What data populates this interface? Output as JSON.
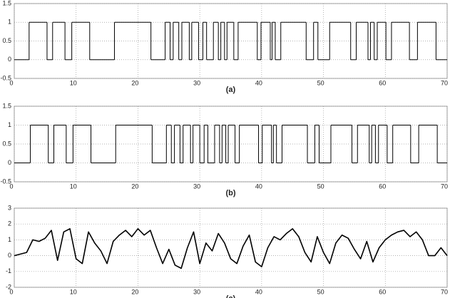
{
  "chart_data": [
    {
      "type": "step",
      "xlabel": "(a)",
      "xlim": [
        0,
        70
      ],
      "ylim": [
        -0.5,
        1.5
      ],
      "xticks": [
        0,
        10,
        20,
        30,
        40,
        50,
        60,
        70
      ],
      "yticks": [
        -0.5,
        0,
        0.5,
        1,
        1.5
      ],
      "grid": true,
      "series": [
        {
          "color": "#000000",
          "x": [
            0,
            2.4,
            5.3,
            6.2,
            8.2,
            9.3,
            12.2,
            16.2,
            22.1,
            24.4,
            25.2,
            25.7,
            26.6,
            27.1,
            28.3,
            28.7,
            29.8,
            30.5,
            31.1,
            32.2,
            33.0,
            33.4,
            34.0,
            34.4,
            35.5,
            36.2,
            39.3,
            39.9,
            41.4,
            41.7,
            42.2,
            43.1,
            47.2,
            48.4,
            49.1,
            51.0,
            54.4,
            55.3,
            57.2,
            57.6,
            58.2,
            58.7,
            60.1,
            61.0,
            63.9,
            65.2,
            68.2
          ],
          "values": [
            0,
            1,
            0,
            1,
            0,
            1,
            0,
            1,
            0,
            1,
            0,
            1,
            0,
            1,
            0,
            1,
            0,
            1,
            0,
            1,
            0,
            1,
            0,
            1,
            0,
            1,
            0,
            1,
            0,
            1,
            0,
            1,
            0,
            1,
            0,
            1,
            0,
            1,
            0,
            1,
            0,
            1,
            0,
            1,
            0,
            1,
            0
          ]
        }
      ]
    },
    {
      "type": "step",
      "xlabel": "(b)",
      "xlim": [
        0,
        70
      ],
      "ylim": [
        -0.5,
        1.5
      ],
      "xticks": [
        0,
        10,
        20,
        30,
        40,
        50,
        60,
        70
      ],
      "yticks": [
        -0.5,
        0,
        0.5,
        1,
        1.5
      ],
      "grid": true,
      "series": [
        {
          "color": "#000000",
          "x": [
            0,
            2.6,
            5.5,
            6.4,
            8.4,
            9.5,
            12.4,
            16.4,
            22.3,
            24.6,
            25.4,
            25.9,
            26.8,
            27.3,
            28.5,
            28.9,
            30.0,
            30.7,
            31.3,
            32.4,
            33.2,
            33.6,
            34.2,
            34.6,
            35.7,
            36.4,
            39.5,
            40.1,
            41.6,
            41.9,
            42.4,
            43.3,
            47.4,
            48.6,
            49.3,
            51.2,
            54.6,
            55.5,
            57.4,
            57.8,
            58.4,
            58.9,
            60.3,
            61.2,
            64.1,
            65.4,
            68.4
          ],
          "values": [
            0,
            1,
            0,
            1,
            0,
            1,
            0,
            1,
            0,
            1,
            0,
            1,
            0,
            1,
            0,
            1,
            0,
            1,
            0,
            1,
            0,
            1,
            0,
            1,
            0,
            1,
            0,
            1,
            0,
            1,
            0,
            1,
            0,
            1,
            0,
            1,
            0,
            1,
            0,
            1,
            0,
            1,
            0,
            1,
            0,
            1,
            0
          ]
        }
      ]
    },
    {
      "type": "line",
      "xlabel": "(c)",
      "xlim": [
        0,
        70
      ],
      "ylim": [
        -2,
        3
      ],
      "xticks": [
        0,
        10,
        20,
        30,
        40,
        50,
        60,
        70
      ],
      "yticks": [
        -2,
        -1,
        0,
        1,
        2,
        3
      ],
      "grid": true,
      "series": [
        {
          "color": "#000000",
          "x": [
            0,
            1,
            2,
            3,
            4,
            5,
            6,
            7,
            8,
            9,
            10,
            11,
            12,
            13,
            14,
            15,
            16,
            17,
            18,
            19,
            20,
            21,
            22,
            23,
            24,
            25,
            26,
            27,
            28,
            29,
            30,
            31,
            32,
            33,
            34,
            35,
            36,
            37,
            38,
            39,
            40,
            41,
            42,
            43,
            44,
            45,
            46,
            47,
            48,
            49,
            50,
            51,
            52,
            53,
            54,
            55,
            56,
            57,
            58,
            59,
            60,
            61,
            62,
            63,
            64,
            65,
            66,
            67,
            68,
            69,
            70
          ],
          "values": [
            0,
            0.1,
            0.2,
            1.0,
            0.9,
            1.1,
            1.6,
            -0.3,
            1.5,
            1.7,
            -0.2,
            -0.5,
            1.5,
            0.8,
            0.3,
            -0.5,
            0.9,
            1.3,
            1.6,
            1.2,
            1.7,
            1.3,
            1.6,
            0.5,
            -0.5,
            0.4,
            -0.6,
            -0.8,
            0.5,
            1.5,
            -0.5,
            0.8,
            0.3,
            1.4,
            0.8,
            -0.2,
            -0.5,
            0.6,
            1.3,
            -0.4,
            -0.7,
            0.5,
            1.2,
            1.0,
            1.4,
            1.7,
            1.2,
            0.2,
            -0.4,
            1.2,
            0.2,
            -0.5,
            0.8,
            1.3,
            1.1,
            0.4,
            -0.2,
            0.9,
            -0.4,
            0.5,
            1.0,
            1.3,
            1.5,
            1.6,
            1.2,
            1.5,
            1.0,
            0.0,
            0.0,
            0.5,
            0.0
          ]
        }
      ]
    }
  ]
}
